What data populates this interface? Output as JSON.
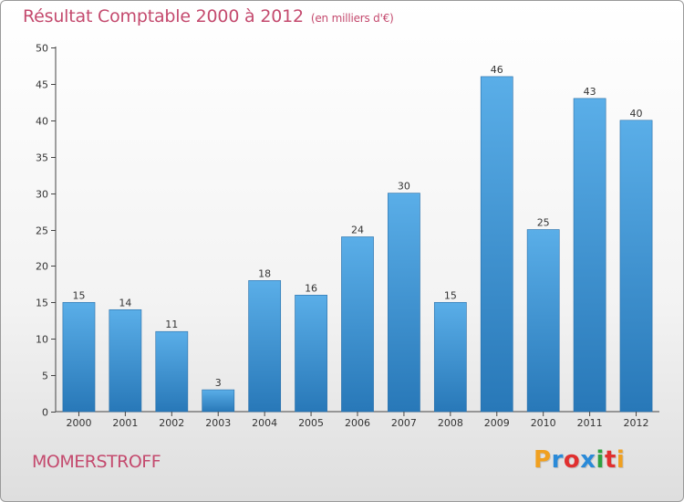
{
  "header": {
    "title": "Résultat Comptable 2000 à 2012",
    "subtitle": "(en milliers d'€)"
  },
  "footer": {
    "city": "MOMERSTROFF",
    "brand": "Proxiti"
  },
  "colors": {
    "title": "#c44a6e",
    "bar_top": "#5aaee8",
    "bar_bottom": "#2878b8",
    "brand_letters": [
      "#f0a020",
      "#2a8ad8",
      "#e03030",
      "#2a8ad8",
      "#30a040",
      "#e03030",
      "#f0a020"
    ]
  },
  "chart_data": {
    "type": "bar",
    "title": "Résultat Comptable 2000 à 2012",
    "xlabel": "",
    "ylabel": "",
    "categories": [
      "2000",
      "2001",
      "2002",
      "2003",
      "2004",
      "2005",
      "2006",
      "2007",
      "2008",
      "2009",
      "2010",
      "2011",
      "2012"
    ],
    "values": [
      15,
      14,
      11,
      3,
      18,
      16,
      24,
      30,
      15,
      46,
      25,
      43,
      40
    ],
    "ylim": [
      0,
      50
    ],
    "yticks": [
      0,
      5,
      10,
      15,
      20,
      25,
      30,
      35,
      40,
      45,
      50
    ],
    "grid": false,
    "data_labels": true
  }
}
